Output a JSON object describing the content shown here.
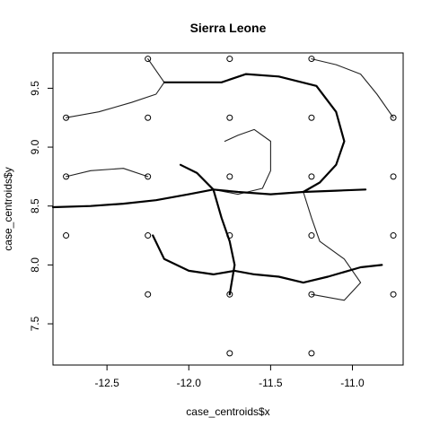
{
  "chart_data": {
    "type": "scatter",
    "title": "Sierra Leone",
    "xlabel": "case_centroids$x",
    "ylabel": "case_centroids$y",
    "xlim": [
      -12.83,
      -10.69
    ],
    "ylim": [
      7.15,
      9.8
    ],
    "x_ticks": [
      -12.5,
      -12.0,
      -11.5,
      -11.0
    ],
    "x_tick_labels": [
      "-12.5",
      "-12.0",
      "-11.5",
      "-11.0"
    ],
    "y_ticks": [
      7.5,
      8.0,
      8.5,
      9.0,
      9.5
    ],
    "y_tick_labels": [
      "7.5",
      "8.0",
      "8.5",
      "9.0",
      "9.5"
    ],
    "grid": false,
    "legend": "none",
    "points": [
      {
        "x": -12.25,
        "y": 9.75
      },
      {
        "x": -11.75,
        "y": 9.75
      },
      {
        "x": -11.25,
        "y": 9.75
      },
      {
        "x": -12.75,
        "y": 9.25
      },
      {
        "x": -12.25,
        "y": 9.25
      },
      {
        "x": -11.75,
        "y": 9.25
      },
      {
        "x": -11.25,
        "y": 9.25
      },
      {
        "x": -10.75,
        "y": 9.25
      },
      {
        "x": -12.75,
        "y": 8.75
      },
      {
        "x": -12.25,
        "y": 8.75
      },
      {
        "x": -11.75,
        "y": 8.75
      },
      {
        "x": -11.25,
        "y": 8.75
      },
      {
        "x": -10.75,
        "y": 8.75
      },
      {
        "x": -12.75,
        "y": 8.25
      },
      {
        "x": -12.25,
        "y": 8.25
      },
      {
        "x": -11.75,
        "y": 8.25
      },
      {
        "x": -11.25,
        "y": 8.25
      },
      {
        "x": -10.75,
        "y": 8.25
      },
      {
        "x": -12.25,
        "y": 7.75
      },
      {
        "x": -11.75,
        "y": 7.75
      },
      {
        "x": -11.25,
        "y": 7.75
      },
      {
        "x": -10.75,
        "y": 7.75
      },
      {
        "x": -11.75,
        "y": 7.25
      },
      {
        "x": -11.25,
        "y": 7.25
      }
    ],
    "road_network": {
      "major": [
        [
          [
            -12.83,
            8.49
          ],
          [
            -12.6,
            8.5
          ],
          [
            -12.4,
            8.52
          ],
          [
            -12.2,
            8.55
          ],
          [
            -12.0,
            8.6
          ],
          [
            -11.85,
            8.64
          ],
          [
            -11.7,
            8.62
          ],
          [
            -11.5,
            8.6
          ],
          [
            -11.3,
            8.62
          ],
          [
            -11.1,
            8.63
          ],
          [
            -10.92,
            8.64
          ]
        ],
        [
          [
            -12.05,
            8.85
          ],
          [
            -11.95,
            8.78
          ],
          [
            -11.85,
            8.64
          ],
          [
            -11.8,
            8.4
          ],
          [
            -11.75,
            8.2
          ],
          [
            -11.72,
            8.0
          ],
          [
            -11.75,
            7.75
          ]
        ],
        [
          [
            -11.72,
            7.95
          ],
          [
            -11.6,
            7.92
          ],
          [
            -11.45,
            7.9
          ],
          [
            -11.3,
            7.85
          ],
          [
            -11.15,
            7.9
          ],
          [
            -10.95,
            7.98
          ],
          [
            -10.82,
            8.0
          ]
        ],
        [
          [
            -11.72,
            7.95
          ],
          [
            -11.85,
            7.92
          ],
          [
            -12.0,
            7.95
          ],
          [
            -12.15,
            8.05
          ],
          [
            -12.22,
            8.25
          ]
        ],
        [
          [
            -11.3,
            8.62
          ],
          [
            -11.2,
            8.7
          ],
          [
            -11.1,
            8.85
          ],
          [
            -11.05,
            9.05
          ],
          [
            -11.1,
            9.3
          ],
          [
            -11.22,
            9.52
          ],
          [
            -11.45,
            9.6
          ],
          [
            -11.65,
            9.62
          ],
          [
            -11.8,
            9.55
          ],
          [
            -12.0,
            9.55
          ],
          [
            -12.15,
            9.55
          ]
        ]
      ],
      "minor": [
        [
          [
            -11.85,
            8.64
          ],
          [
            -11.7,
            8.6
          ],
          [
            -11.55,
            8.65
          ],
          [
            -11.5,
            8.8
          ],
          [
            -11.5,
            9.05
          ],
          [
            -11.6,
            9.15
          ],
          [
            -11.7,
            9.1
          ],
          [
            -11.78,
            9.05
          ]
        ],
        [
          [
            -11.3,
            8.62
          ],
          [
            -11.25,
            8.4
          ],
          [
            -11.2,
            8.2
          ],
          [
            -11.05,
            8.05
          ],
          [
            -10.95,
            7.85
          ],
          [
            -11.05,
            7.7
          ],
          [
            -11.25,
            7.75
          ]
        ],
        [
          [
            -11.25,
            9.75
          ],
          [
            -11.1,
            9.7
          ],
          [
            -10.95,
            9.62
          ],
          [
            -10.85,
            9.45
          ],
          [
            -10.75,
            9.25
          ]
        ],
        [
          [
            -12.75,
            9.25
          ],
          [
            -12.55,
            9.3
          ],
          [
            -12.35,
            9.38
          ],
          [
            -12.2,
            9.45
          ],
          [
            -12.15,
            9.55
          ],
          [
            -12.25,
            9.75
          ]
        ],
        [
          [
            -12.75,
            8.75
          ],
          [
            -12.6,
            8.8
          ],
          [
            -12.4,
            8.82
          ],
          [
            -12.25,
            8.75
          ]
        ]
      ]
    }
  }
}
